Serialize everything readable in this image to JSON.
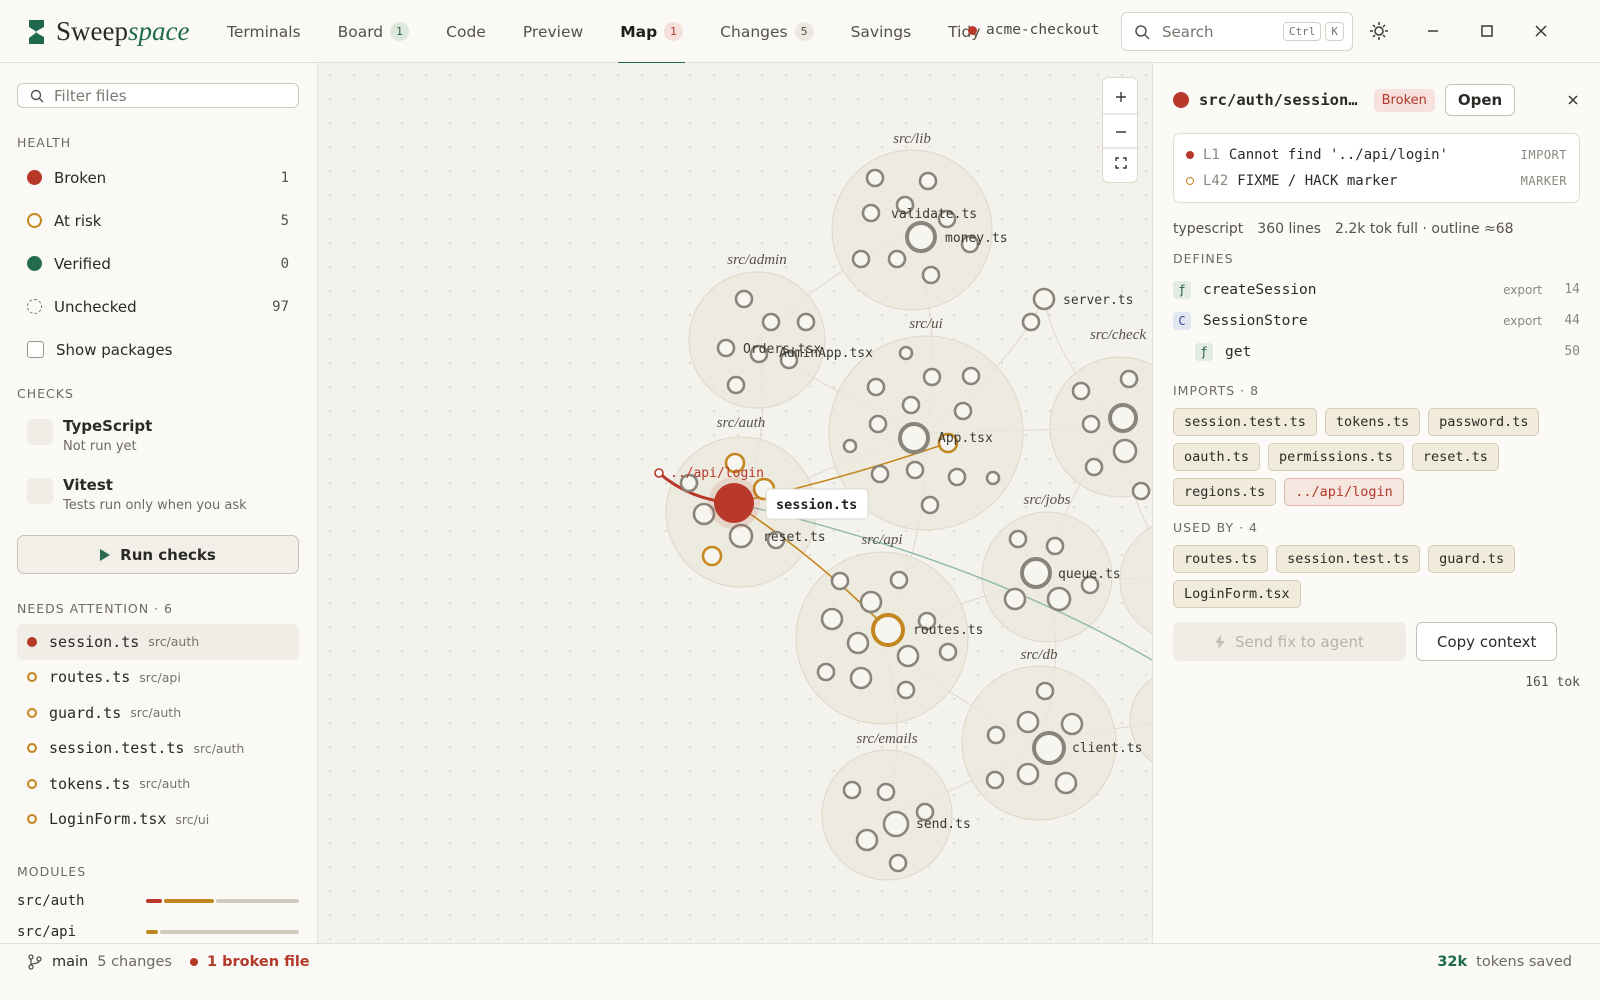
{
  "header": {
    "brand": {
      "first": "Sweep",
      "second": "space"
    },
    "tabs": [
      {
        "label": "Terminals"
      },
      {
        "label": "Board",
        "badge": 1,
        "tone": "green"
      },
      {
        "label": "Code"
      },
      {
        "label": "Preview"
      },
      {
        "label": "Map",
        "badge": 1,
        "tone": "red",
        "active": true
      },
      {
        "label": "Changes",
        "badge": 5,
        "tone": "gray"
      },
      {
        "label": "Savings"
      },
      {
        "label": "Tidy"
      }
    ],
    "repo": "acme-checkout",
    "search": {
      "placeholder": "Search",
      "keys": [
        "Ctrl",
        "K"
      ]
    }
  },
  "sidebar": {
    "filter_placeholder": "Filter files",
    "health": {
      "title": "HEALTH",
      "items": [
        {
          "label": "Broken",
          "count": 1,
          "state": "broken"
        },
        {
          "label": "At risk",
          "count": 5,
          "state": "risk"
        },
        {
          "label": "Verified",
          "count": 0,
          "state": "verified"
        },
        {
          "label": "Unchecked",
          "count": 97,
          "state": "unchecked"
        }
      ],
      "toggle": "Show packages"
    },
    "checks": {
      "title": "CHECKS",
      "items": [
        {
          "name": "TypeScript",
          "status": "Not run yet"
        },
        {
          "name": "Vitest",
          "status": "Tests run only when you ask"
        }
      ],
      "button": "Run checks"
    },
    "attention": {
      "title": "NEEDS ATTENTION · 6",
      "items": [
        {
          "file": "session.ts",
          "dir": "src/auth",
          "state": "broken"
        },
        {
          "file": "routes.ts",
          "dir": "src/api",
          "state": "risk"
        },
        {
          "file": "guard.ts",
          "dir": "src/auth",
          "state": "risk"
        },
        {
          "file": "session.test.ts",
          "dir": "src/auth",
          "state": "risk"
        },
        {
          "file": "tokens.ts",
          "dir": "src/auth",
          "state": "risk"
        },
        {
          "file": "LoginForm.tsx",
          "dir": "src/ui",
          "state": "risk"
        }
      ]
    },
    "modules": {
      "title": "MODULES",
      "items": [
        "src/auth",
        "src/api"
      ]
    }
  },
  "map": {
    "clusters": [
      "src/lib",
      "src/admin",
      "src/ui",
      "src/check",
      "src/auth",
      "src/jobs",
      "src/api",
      "src/db",
      "src/emails"
    ],
    "files": [
      "validate.ts",
      "money.ts",
      "server.ts",
      "Orders.tsx",
      "AdminApp.tsx",
      "App.tsx",
      "reset.ts",
      "queue.ts",
      "routes.ts",
      "client.ts",
      "send.ts"
    ],
    "missing": "../api/login",
    "tooltip": "session.ts"
  },
  "panel": {
    "path": "src/auth/session…",
    "status": "Broken",
    "open": "Open",
    "issues": [
      {
        "line": "L1",
        "text": "Cannot find '../api/login'",
        "kind": "IMPORT",
        "state": "broken"
      },
      {
        "line": "L42",
        "text": "FIXME / HACK marker",
        "kind": "MARKER",
        "state": "risk"
      }
    ],
    "meta": [
      "typescript",
      "360 lines",
      "2.2k tok full · outline ≈68"
    ],
    "defines": {
      "title": "DEFINES",
      "items": [
        {
          "icon": "ƒ",
          "name": "createSession",
          "scope": "export",
          "line": 14
        },
        {
          "icon": "C",
          "name": "SessionStore",
          "scope": "export",
          "line": 44
        },
        {
          "icon": "ƒ",
          "name": "get",
          "line": 50,
          "nested": true
        }
      ]
    },
    "imports": {
      "title": "IMPORTS · 8",
      "items": [
        "session.test.ts",
        "tokens.ts",
        "password.ts",
        "oauth.ts",
        "permissions.ts",
        "reset.ts",
        "regions.ts",
        "../api/login"
      ]
    },
    "used_by": {
      "title": "USED BY · 4",
      "items": [
        "routes.ts",
        "session.test.ts",
        "guard.ts",
        "LoginForm.tsx"
      ]
    },
    "send": "Send fix to agent",
    "copy": "Copy context",
    "tokens": "161 tok"
  },
  "status": {
    "branch": "main",
    "changes": "5 changes",
    "broken": "1 broken file",
    "saved_value": "32k",
    "saved_label": "tokens saved"
  }
}
